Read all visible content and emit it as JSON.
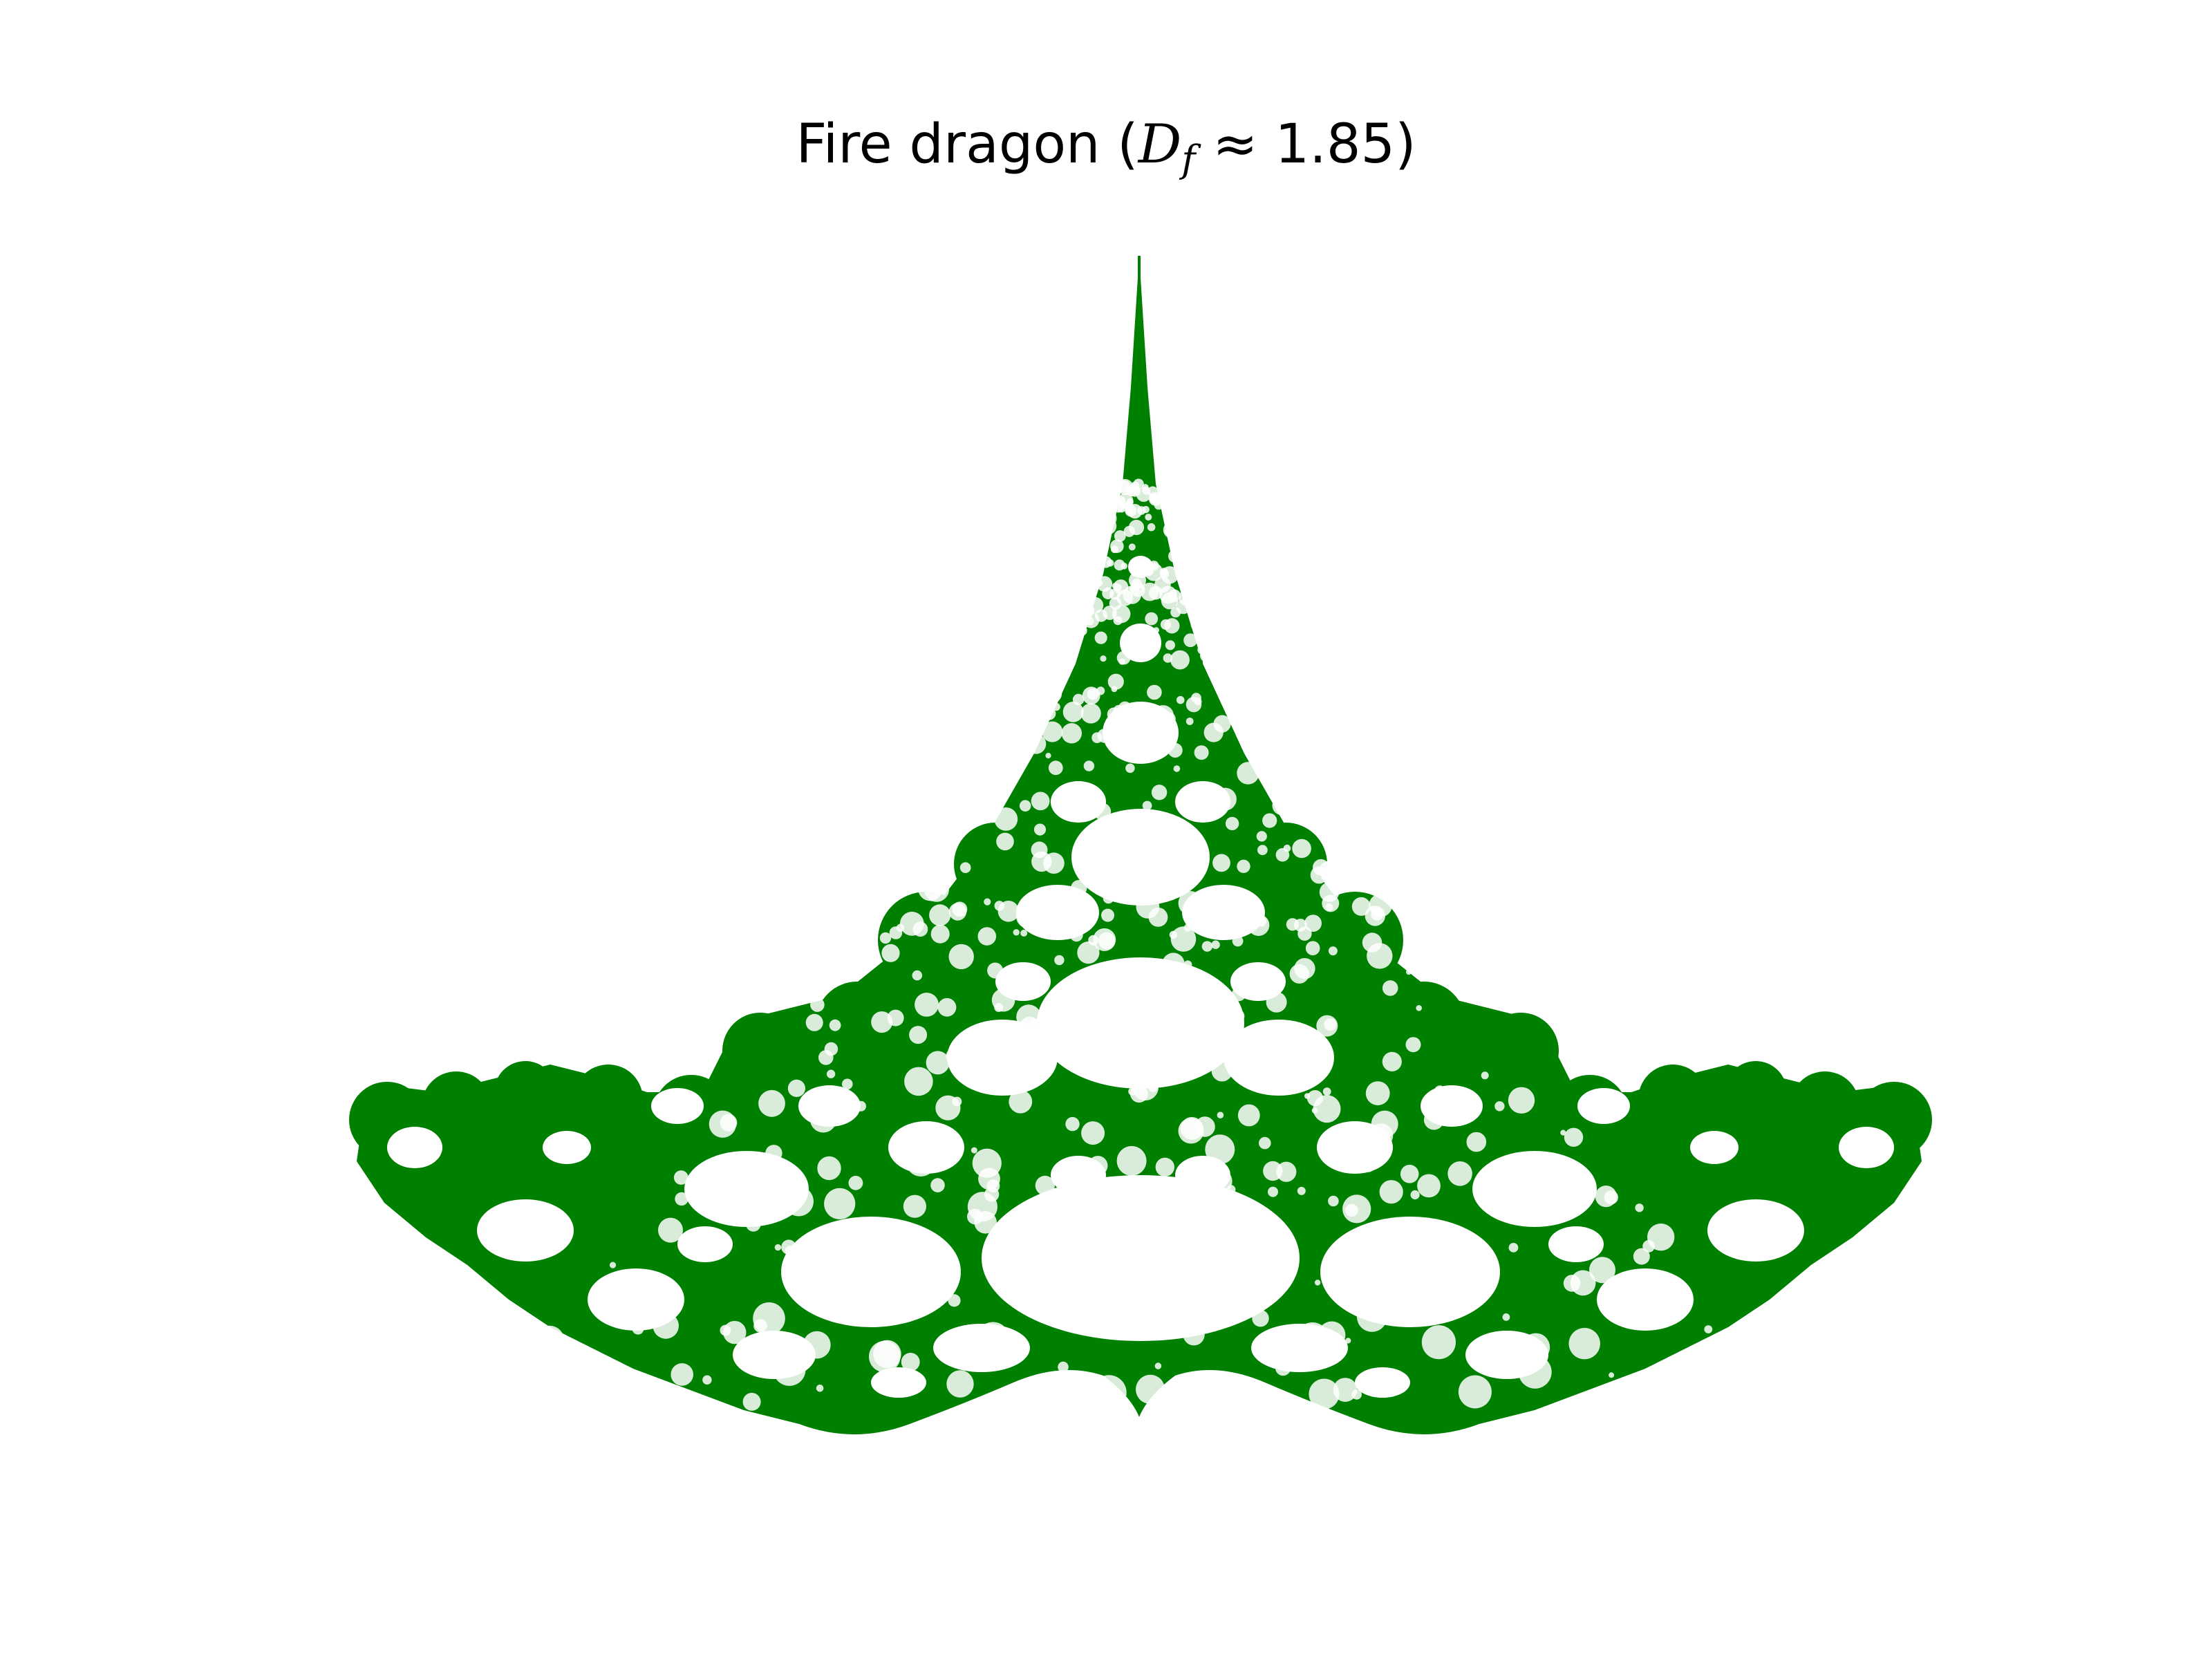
{
  "figure": {
    "title_prefix": "Fire dragon (",
    "title_symbol": "D",
    "title_subscript": "f",
    "title_relation": " ≈ ",
    "title_value": "1.85",
    "title_suffix": ")",
    "fractal_name": "Fire dragon",
    "fractal_dimension": 1.85
  },
  "colors": {
    "background": "#ffffff",
    "fractal": "#008000",
    "title_text": "#000000"
  }
}
